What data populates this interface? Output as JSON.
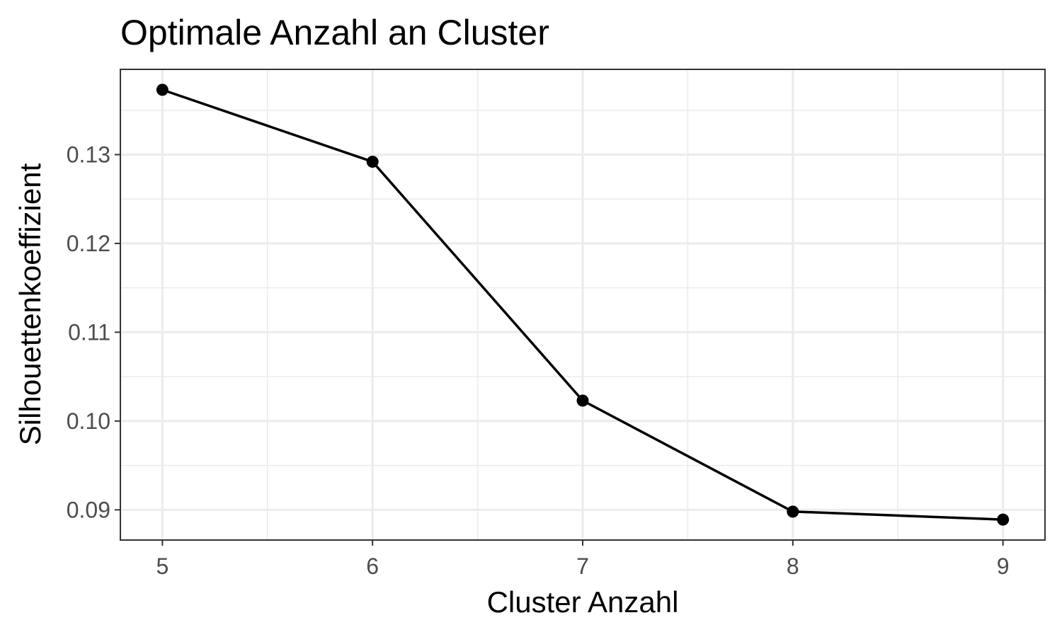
{
  "chart_data": {
    "type": "line",
    "title": "Optimale Anzahl an Cluster",
    "xlabel": "Cluster Anzahl",
    "ylabel": "Silhouettenkoeffizient",
    "x": [
      5,
      6,
      7,
      8,
      9
    ],
    "y": [
      0.1373,
      0.1292,
      0.1023,
      0.0898,
      0.0889
    ],
    "xticks": [
      5,
      6,
      7,
      8,
      9
    ],
    "yticks": [
      0.09,
      0.1,
      0.11,
      0.12,
      0.13
    ],
    "xtick_labels": [
      "5",
      "6",
      "7",
      "8",
      "9"
    ],
    "ytick_labels": [
      "0.09",
      "0.10",
      "0.11",
      "0.12",
      "0.13"
    ],
    "xlim": [
      4.8,
      9.2
    ],
    "ylim": [
      0.0866,
      0.1396
    ],
    "grid": true,
    "line_color": "#000000",
    "grid_color": "#ebebeb",
    "panel_border_color": "#333333"
  }
}
